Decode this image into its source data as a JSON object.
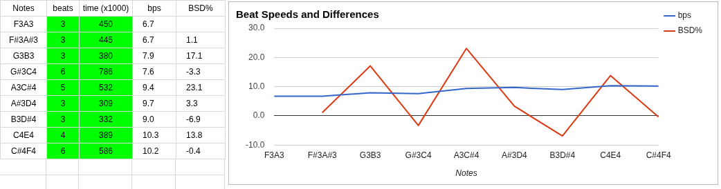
{
  "chart_data": [
    {
      "type": "other",
      "ylabel": "Notes",
      "categories": [
        "beats",
        "time (x1000)",
        "bps",
        "BSD%"
      ],
      "y_categories": [
        "F3A3",
        "F#3A#3",
        "G3B3",
        "G#3C4",
        "A3C#4",
        "A#3D4",
        "B3D#4",
        "C4E4",
        "C#4F4"
      ],
      "colors": [
        "#00ff00",
        "#00ff00",
        "#ffffff",
        "#ffffff"
      ],
      "annotations": [
        "3",
        "450",
        "6.7",
        null,
        "3",
        "445",
        "6.7",
        "1.1",
        "3",
        "380",
        "7.9",
        "17.1",
        "6",
        "786",
        "7.6",
        "-3.3",
        "5",
        "532",
        "9.4",
        "23.1",
        "3",
        "309",
        "9.7",
        "3.3",
        "3",
        "332",
        "9.0",
        "-6.9",
        "4",
        "389",
        "10.3",
        "13.8",
        "6",
        "586",
        "10.2",
        "-0.4"
      ]
    },
    {
      "type": "line",
      "title": "Beat Speeds and Differences",
      "xlabel": "Notes",
      "categories": [
        "F3A3",
        "F#3A#3",
        "G3B3",
        "G#3C4",
        "A3C#4",
        "A#3D4",
        "B3D#4",
        "C4E4",
        "C#4F4"
      ],
      "series": [
        {
          "name": "bps",
          "color": "#3366cc",
          "values": [
            6.7,
            6.7,
            7.9,
            7.6,
            9.4,
            9.7,
            9.0,
            10.3,
            10.2
          ]
        },
        {
          "name": "BSD%",
          "color": "#dc3912",
          "values": [
            null,
            1.1,
            17.1,
            -3.3,
            23.1,
            3.3,
            -6.9,
            13.8,
            -0.4
          ]
        }
      ],
      "ylim": [
        -10,
        30
      ],
      "yticks": [
        {
          "value": -10,
          "label": "-10.0"
        },
        {
          "value": 0,
          "label": "0.0"
        },
        {
          "value": 10,
          "label": "10.0"
        },
        {
          "value": 20,
          "label": "20.0"
        },
        {
          "value": 30,
          "label": "30.0"
        }
      ],
      "grid": "y",
      "legend": "top right",
      "marker": "none"
    }
  ]
}
